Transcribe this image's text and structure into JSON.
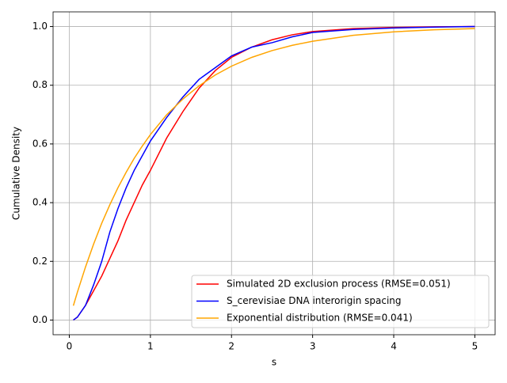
{
  "chart_data": {
    "type": "line",
    "x_label": "s",
    "y_label": "Cumulative Density",
    "x": [
      0.05,
      0.1,
      0.2,
      0.3,
      0.4,
      0.5,
      0.6,
      0.7,
      0.8,
      0.9,
      1.0,
      1.2,
      1.4,
      1.6,
      1.8,
      2.0,
      2.25,
      2.5,
      2.75,
      3.0,
      3.5,
      4.0,
      4.5,
      5.0
    ],
    "series": [
      {
        "name": "Simulated 2D exclusion process (RMSE=0.051)",
        "color": "#ff0000",
        "values": [
          0.0,
          0.01,
          0.05,
          0.1,
          0.15,
          0.21,
          0.27,
          0.34,
          0.4,
          0.46,
          0.51,
          0.62,
          0.71,
          0.79,
          0.85,
          0.895,
          0.93,
          0.955,
          0.972,
          0.983,
          0.993,
          0.997,
          0.999,
          1.0
        ]
      },
      {
        "name": "S_cerevisiae DNA interorigin spacing",
        "color": "#0000ff",
        "values": [
          0.0,
          0.01,
          0.05,
          0.12,
          0.2,
          0.3,
          0.38,
          0.45,
          0.51,
          0.56,
          0.61,
          0.69,
          0.76,
          0.82,
          0.86,
          0.9,
          0.93,
          0.945,
          0.965,
          0.98,
          0.99,
          0.995,
          0.998,
          1.0
        ]
      },
      {
        "name": "Exponential distribution (RMSE=0.041)",
        "color": "#ffa500",
        "values": [
          0.049,
          0.095,
          0.181,
          0.259,
          0.33,
          0.393,
          0.451,
          0.503,
          0.551,
          0.593,
          0.632,
          0.699,
          0.753,
          0.798,
          0.835,
          0.865,
          0.895,
          0.918,
          0.936,
          0.95,
          0.97,
          0.982,
          0.989,
          0.993
        ]
      }
    ],
    "xlim": [
      -0.2,
      5.25
    ],
    "ylim": [
      -0.05,
      1.05
    ],
    "xticks": [
      0,
      1,
      2,
      3,
      4,
      5
    ],
    "yticks": [
      {
        "value": 0,
        "label": "0.0"
      },
      0.2,
      0.4,
      0.6,
      0.8,
      {
        "value": 1,
        "label": "1.0"
      }
    ],
    "grid": true,
    "legend": "lower-right"
  }
}
